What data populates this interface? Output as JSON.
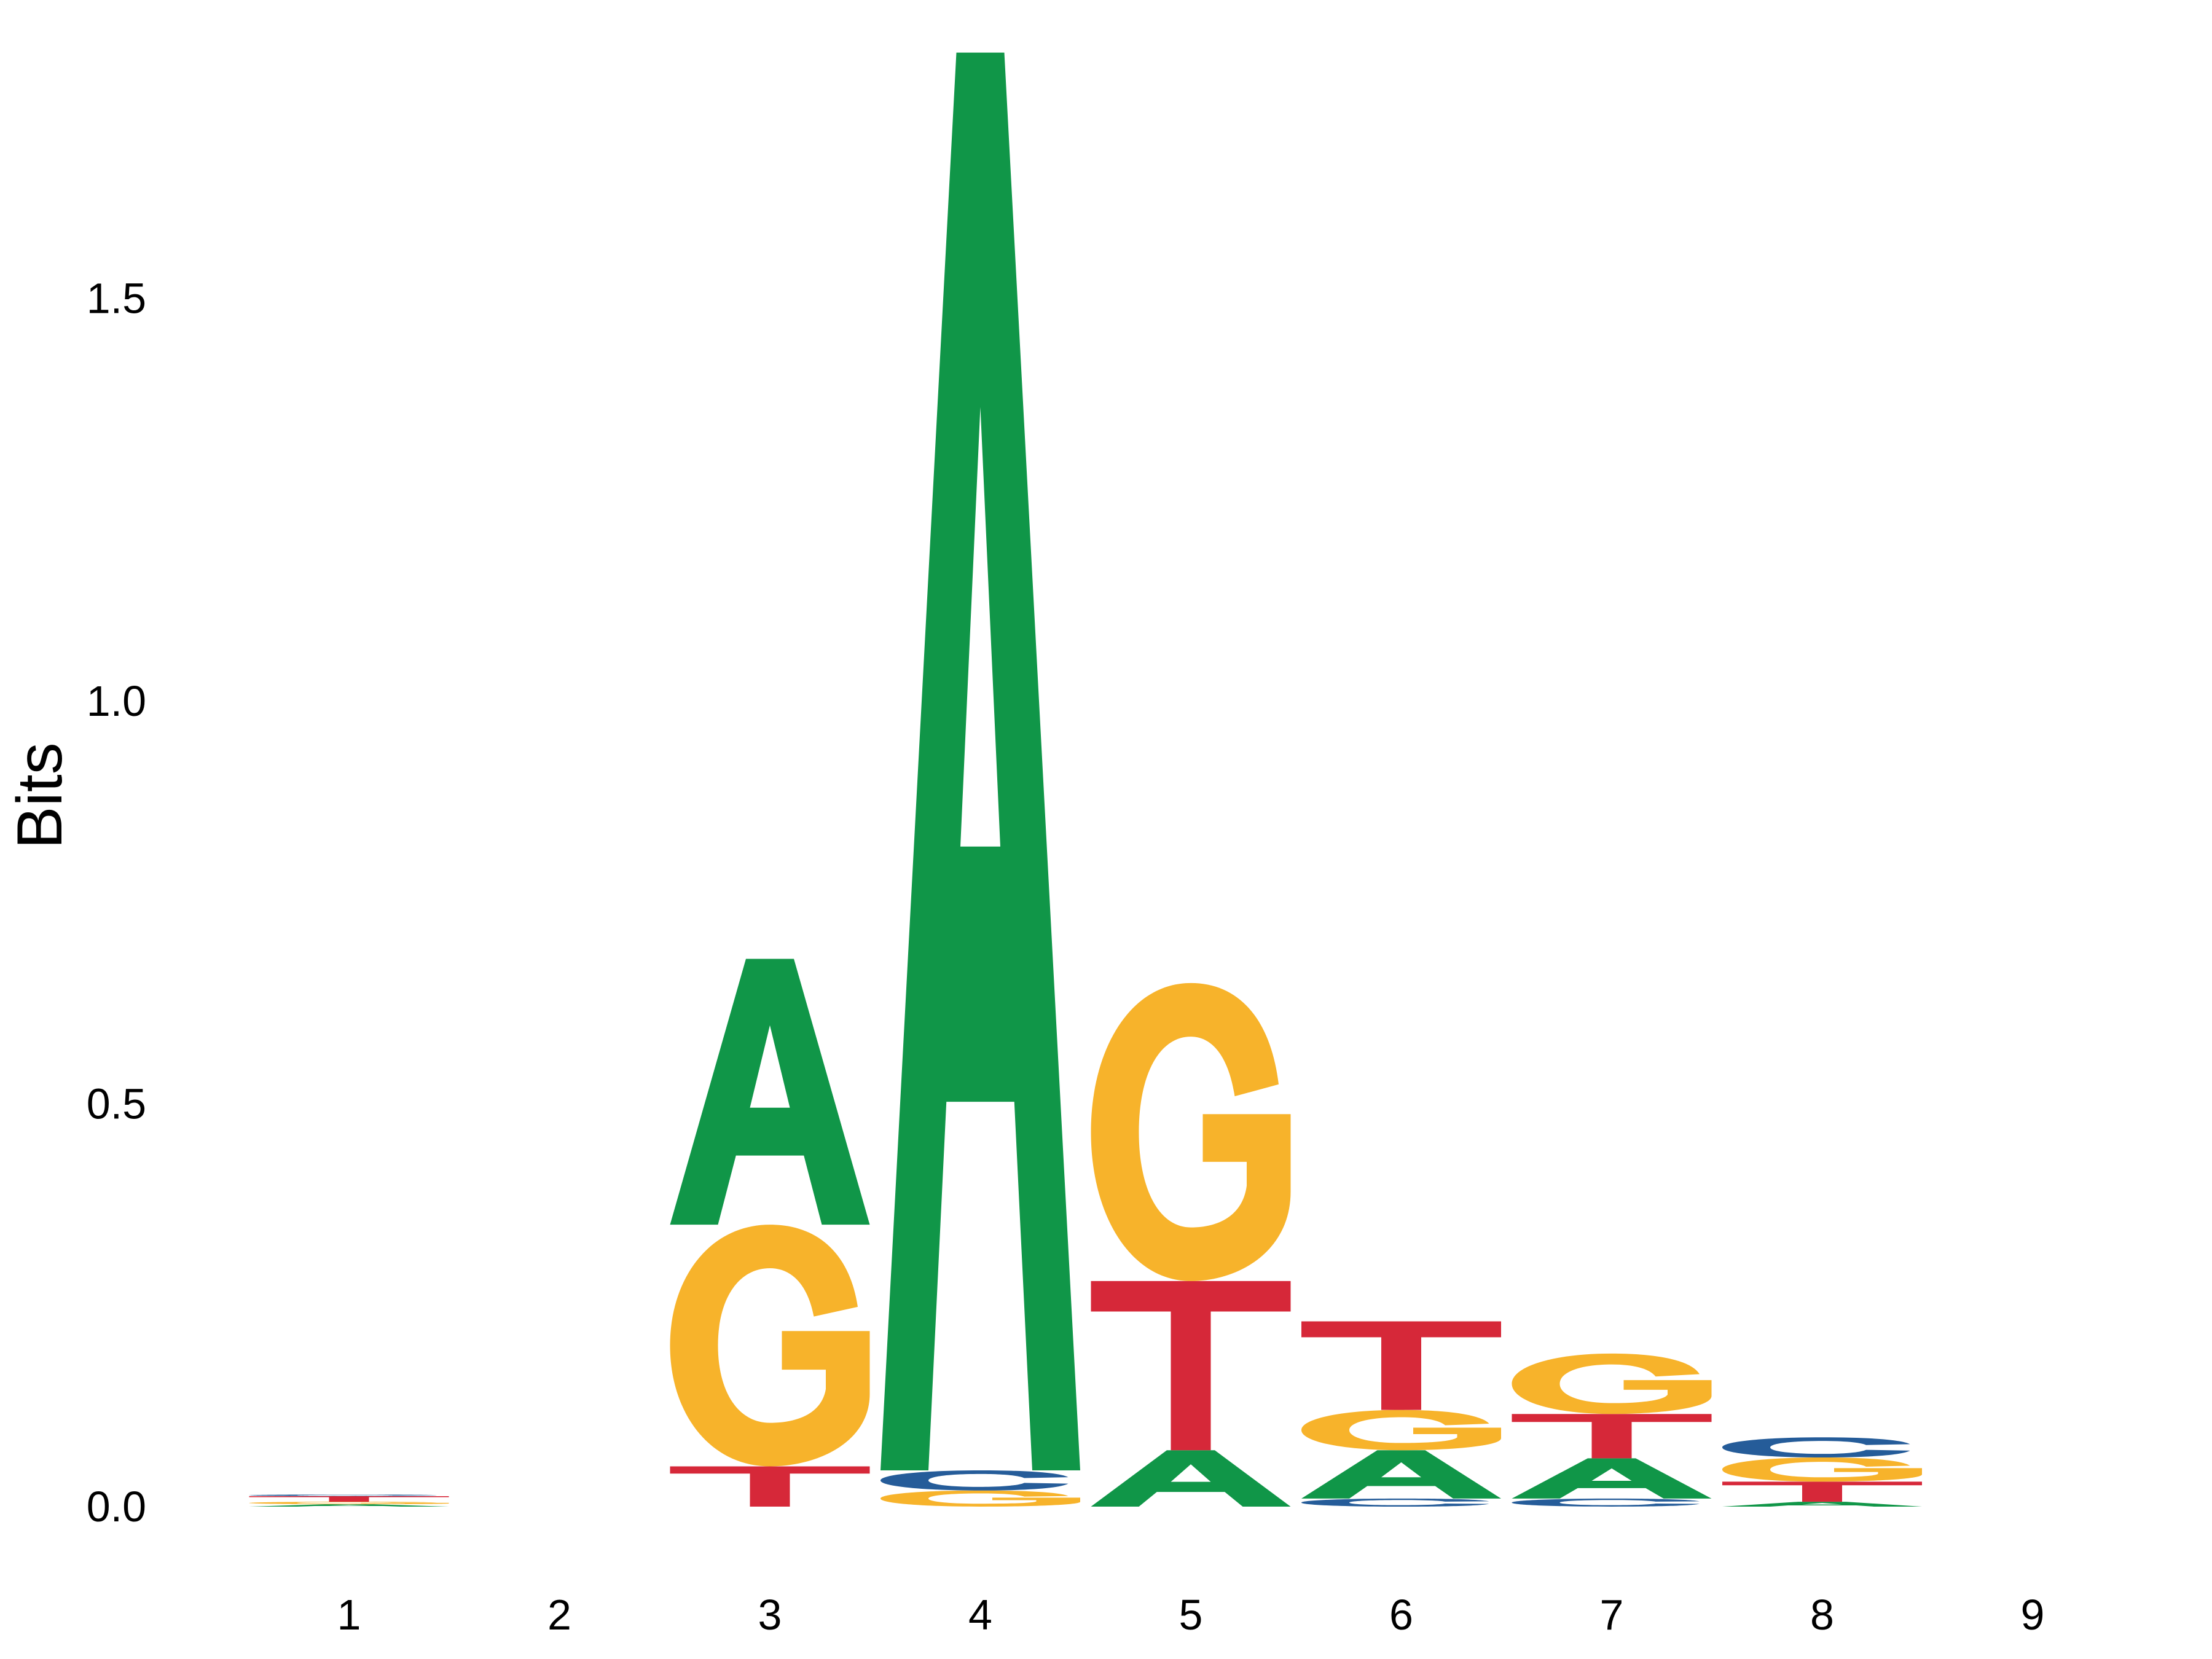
{
  "chart_data": {
    "type": "sequence_logo",
    "title": "",
    "xlabel": "",
    "ylabel": "Bits",
    "ylim": [
      -0.06,
      1.86
    ],
    "yticks": [
      "0.0",
      "0.5",
      "1.0",
      "1.5"
    ],
    "x_tick_labels": [
      "1",
      "2",
      "3",
      "4",
      "5",
      "6",
      "7",
      "8",
      "9"
    ],
    "grid": false,
    "colors": {
      "A": "#109648",
      "C": "#255c99",
      "G": "#f7b32b",
      "T": "#d62839"
    },
    "positions": [
      {
        "position": "1",
        "stack": [
          {
            "letter": "A",
            "bits": 0.003
          },
          {
            "letter": "G",
            "bits": 0.003
          },
          {
            "letter": "T",
            "bits": 0.007
          },
          {
            "letter": "C",
            "bits": 0.002
          }
        ]
      },
      {
        "position": "2",
        "stack": []
      },
      {
        "position": "3",
        "stack": [
          {
            "letter": "T",
            "bits": 0.05
          },
          {
            "letter": "G",
            "bits": 0.3
          },
          {
            "letter": "A",
            "bits": 0.33
          }
        ]
      },
      {
        "position": "4",
        "stack": [
          {
            "letter": "G",
            "bits": 0.02
          },
          {
            "letter": "C",
            "bits": 0.025
          },
          {
            "letter": "A",
            "bits": 1.76
          }
        ]
      },
      {
        "position": "5",
        "stack": [
          {
            "letter": "A",
            "bits": 0.07
          },
          {
            "letter": "T",
            "bits": 0.21
          },
          {
            "letter": "G",
            "bits": 0.37
          }
        ]
      },
      {
        "position": "6",
        "stack": [
          {
            "letter": "C",
            "bits": 0.01
          },
          {
            "letter": "A",
            "bits": 0.06
          },
          {
            "letter": "G",
            "bits": 0.05
          },
          {
            "letter": "T",
            "bits": 0.11
          }
        ]
      },
      {
        "position": "7",
        "stack": [
          {
            "letter": "C",
            "bits": 0.01
          },
          {
            "letter": "A",
            "bits": 0.05
          },
          {
            "letter": "T",
            "bits": 0.055
          },
          {
            "letter": "G",
            "bits": 0.075
          }
        ]
      },
      {
        "position": "8",
        "stack": [
          {
            "letter": "A",
            "bits": 0.006
          },
          {
            "letter": "T",
            "bits": 0.025
          },
          {
            "letter": "G",
            "bits": 0.03
          },
          {
            "letter": "C",
            "bits": 0.025
          }
        ]
      },
      {
        "position": "9",
        "stack": []
      }
    ]
  }
}
